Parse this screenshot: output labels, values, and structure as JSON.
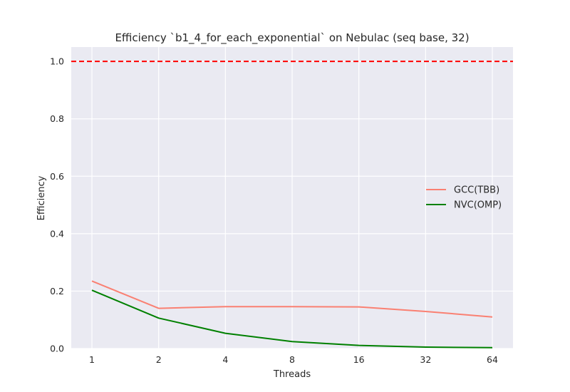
{
  "chart_data": {
    "type": "line",
    "title": "Efficiency `b1_4_for_each_exponential` on Nebulac (seq base, 32)",
    "xlabel": "Threads",
    "ylabel": "Efficiency",
    "categories": [
      "1",
      "2",
      "4",
      "8",
      "16",
      "32",
      "64"
    ],
    "ylim": [
      0.0,
      1.05
    ],
    "yticks": [
      "0.0",
      "0.2",
      "0.4",
      "0.6",
      "0.8",
      "1.0"
    ],
    "grid": true,
    "legend_position": "center-right",
    "reference_line": {
      "y": 1.0,
      "color": "#ff0000",
      "style": "dashed"
    },
    "series": [
      {
        "name": "GCC(TBB)",
        "color": "#fa8072",
        "values": [
          0.235,
          0.14,
          0.146,
          0.146,
          0.145,
          0.129,
          0.11
        ]
      },
      {
        "name": "NVC(OMP)",
        "color": "#008000",
        "values": [
          0.203,
          0.106,
          0.053,
          0.024,
          0.011,
          0.005,
          0.003
        ]
      }
    ]
  }
}
